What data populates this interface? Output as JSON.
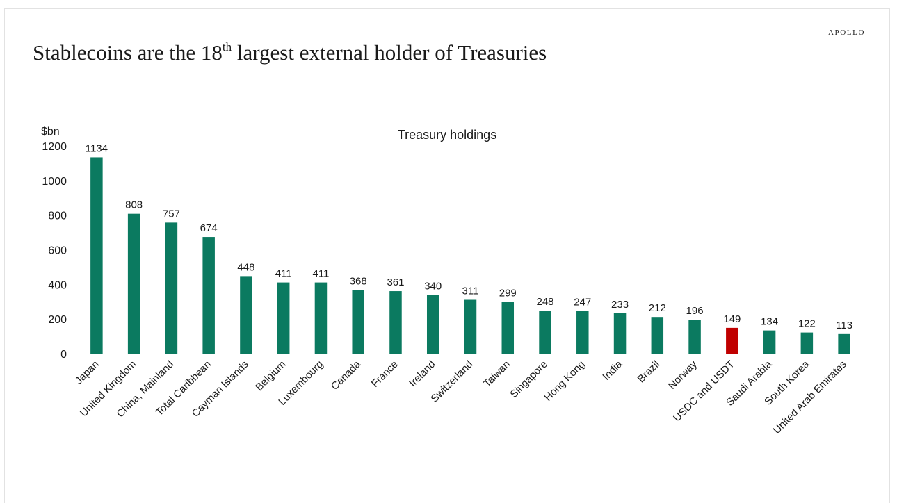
{
  "brand": "APOLLO",
  "headline": {
    "before": "Stablecoins are the 18",
    "sup": "th",
    "after": " largest external holder of Treasuries"
  },
  "colors": {
    "bar": "#0b7a60",
    "highlight": "#c00000",
    "axis": "#595959",
    "text": "#1a1a1a"
  },
  "chart_data": {
    "type": "bar",
    "title": "Treasury holdings",
    "ylabel": "$bn",
    "xlabel": "",
    "ylim": [
      0,
      1200
    ],
    "yticks": [
      0,
      200,
      400,
      600,
      800,
      1000,
      1200
    ],
    "grid": false,
    "highlight_category": "USDC and USDT",
    "categories": [
      "Japan",
      "United Kingdom",
      "China, Mainland",
      "Total Caribbean",
      "Cayman Islands",
      "Belgium",
      "Luxembourg",
      "Canada",
      "France",
      "Ireland",
      "Switzerland",
      "Taiwan",
      "Singapore",
      "Hong Kong",
      "India",
      "Brazil",
      "Norway",
      "USDC and USDT",
      "Saudi Arabia",
      "South Korea",
      "United Arab Emirates"
    ],
    "values": [
      1134,
      808,
      757,
      674,
      448,
      411,
      411,
      368,
      361,
      340,
      311,
      299,
      248,
      247,
      233,
      212,
      196,
      149,
      134,
      122,
      113
    ]
  }
}
